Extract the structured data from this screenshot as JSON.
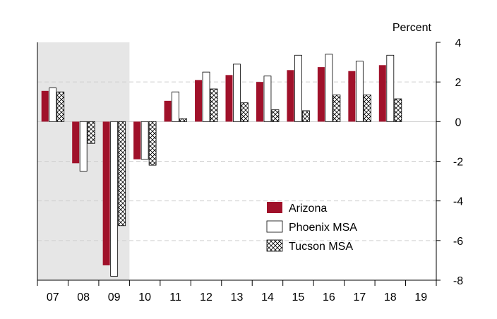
{
  "chart_data": {
    "type": "bar",
    "unit_label": "Percent",
    "categories": [
      "07",
      "08",
      "09",
      "10",
      "11",
      "12",
      "13",
      "14",
      "15",
      "16",
      "17",
      "18",
      "19"
    ],
    "series": [
      {
        "name": "Arizona",
        "color": "#a0112a",
        "pattern": "solid",
        "values": [
          1.55,
          -2.1,
          -7.25,
          -1.9,
          1.05,
          2.1,
          2.35,
          2.0,
          2.6,
          2.75,
          2.55,
          2.85,
          null
        ]
      },
      {
        "name": "Phoenix MSA",
        "color": "#ffffff",
        "pattern": "outline",
        "values": [
          1.7,
          -2.5,
          -7.8,
          -1.9,
          1.5,
          2.5,
          2.9,
          2.3,
          3.35,
          3.4,
          3.05,
          3.35,
          null
        ]
      },
      {
        "name": "Tucson MSA",
        "color": "#ffffff",
        "pattern": "crosshatch",
        "values": [
          1.5,
          -1.1,
          -5.25,
          -2.2,
          0.15,
          1.65,
          0.95,
          0.6,
          0.55,
          1.35,
          1.35,
          1.15,
          null
        ]
      }
    ],
    "y_ticks": [
      4,
      2,
      0,
      -2,
      -4,
      -6,
      -8
    ],
    "ylim": [
      -8,
      4
    ],
    "y_axis_side": "right",
    "grid": "dashed horizontal",
    "legend_position": "inside-lower-right",
    "shaded_categories": [
      "07",
      "08",
      "09"
    ],
    "shade_color": "#e6e6e6"
  }
}
